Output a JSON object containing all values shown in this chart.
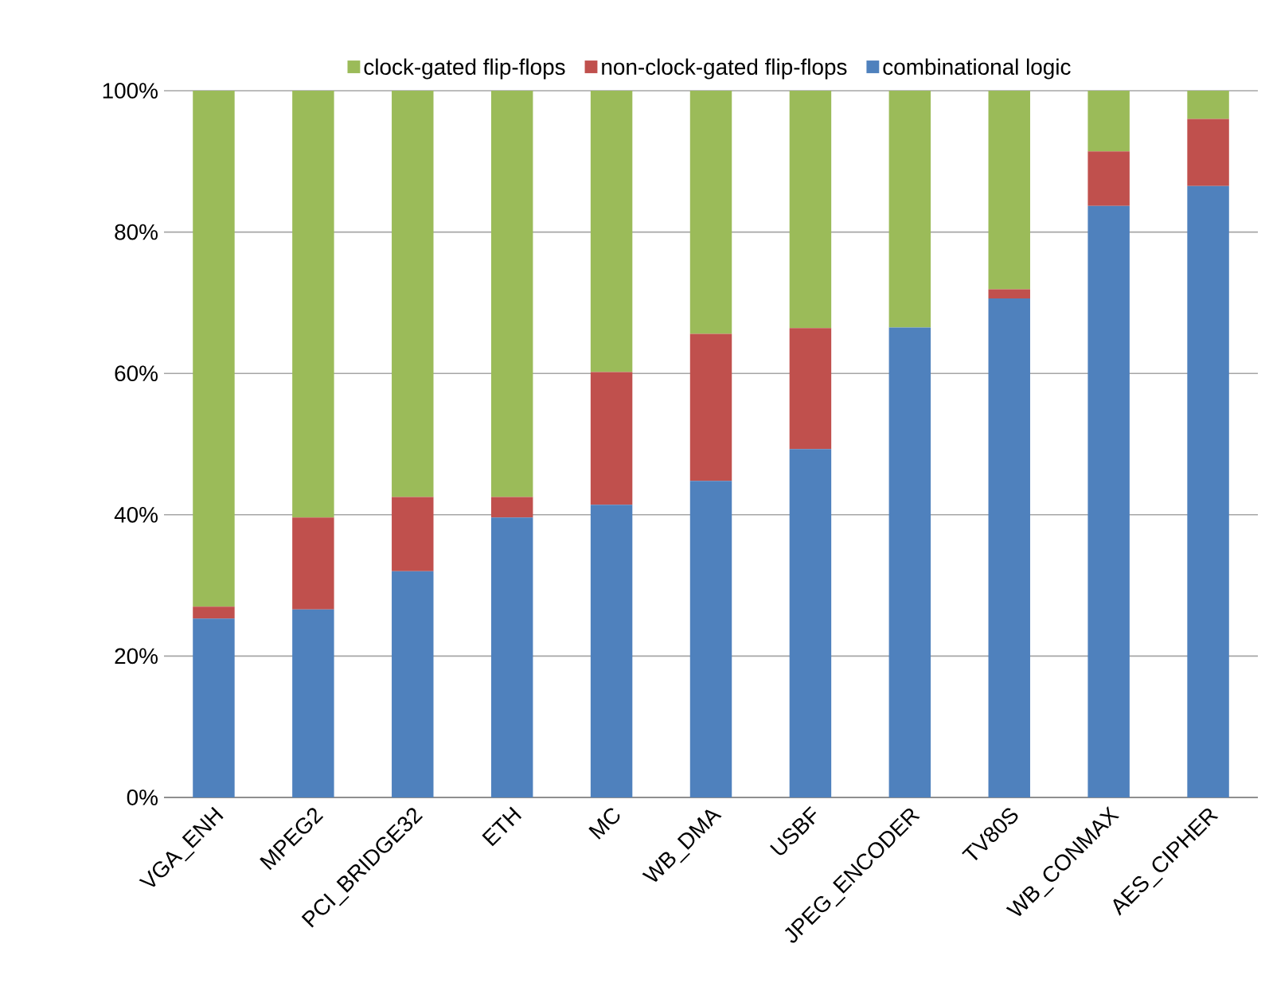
{
  "chart_data": {
    "type": "bar",
    "stacked": true,
    "categories": [
      "VGA_ENH",
      "MPEG2",
      "PCI_BRIDGE32",
      "ETH",
      "MC",
      "WB_DMA",
      "USBF",
      "JPEG_ENCODER",
      "TV80S",
      "WB_CONMAX",
      "AES_CIPHER"
    ],
    "series": [
      {
        "name": "combinational logic",
        "color": "#4f81bd",
        "values": [
          25.3,
          26.6,
          32.0,
          39.6,
          41.4,
          44.8,
          49.3,
          66.5,
          70.6,
          83.7,
          86.5
        ]
      },
      {
        "name": "non-clock-gated flip-flops",
        "color": "#c0504d",
        "values": [
          1.7,
          13.0,
          10.5,
          2.9,
          18.8,
          20.8,
          17.1,
          0,
          1.3,
          7.7,
          9.5
        ]
      },
      {
        "name": "clock-gated flip-flops",
        "color": "#9bbb59",
        "values": [
          73.0,
          60.4,
          57.5,
          57.5,
          39.8,
          34.4,
          33.6,
          33.5,
          28.1,
          8.6,
          4.0
        ]
      }
    ],
    "ylim": [
      0,
      100
    ],
    "yticks": [
      {
        "value": 0,
        "label": "0%"
      },
      {
        "value": 20,
        "label": "20%"
      },
      {
        "value": 40,
        "label": "40%"
      },
      {
        "value": 60,
        "label": "60%"
      },
      {
        "value": 80,
        "label": "80%"
      },
      {
        "value": 100,
        "label": "100%"
      }
    ],
    "grid": "y",
    "legend": "top"
  }
}
